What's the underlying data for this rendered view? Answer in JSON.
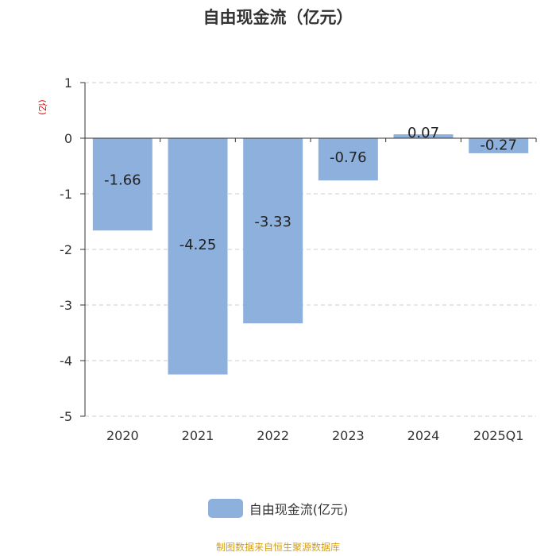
{
  "chart_data": {
    "type": "bar",
    "title": "自由现金流（亿元）",
    "ylabel": "(亿)",
    "categories": [
      "2020",
      "2021",
      "2022",
      "2023",
      "2024",
      "2025Q1"
    ],
    "series": [
      {
        "name": "自由现金流(亿元)",
        "values": [
          -1.66,
          -4.25,
          -3.33,
          -0.76,
          0.07,
          -0.27
        ],
        "labels": [
          "-1.66",
          "-4.25",
          "-3.33",
          "-0.76",
          "0.07",
          "-0.27"
        ]
      }
    ],
    "ylim": [
      -5,
      1
    ],
    "yticks": [
      1,
      0,
      -1,
      -2,
      -3,
      -4,
      -5
    ],
    "grid": true,
    "legend_position": "bottom"
  },
  "colors": {
    "bar": "#8eb0dd",
    "grid": "#cccccc",
    "axis": "#333333",
    "ylabel": "#e60000",
    "source": "#d4a017"
  },
  "footer": {
    "source": "制图数据来自恒生聚源数据库"
  }
}
